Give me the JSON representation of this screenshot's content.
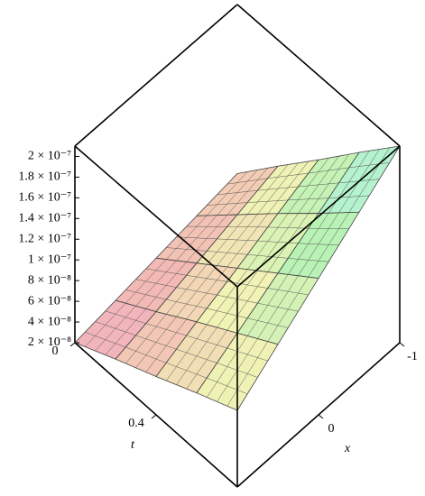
{
  "chart_data": {
    "type": "surface",
    "x_label": "x",
    "t_label": "t",
    "t": [
      0,
      0.2,
      0.4,
      0.6,
      0.8
    ],
    "x": [
      -1,
      -0.5,
      0,
      0.5,
      1
    ],
    "z": [
      [
        4.4e-08,
        3.8e-08,
        3.2e-08,
        2.6e-08,
        2e-08
      ],
      [
        8.6e-08,
        7.4e-08,
        6.2e-08,
        5e-08,
        3.9e-08
      ],
      [
        1.27e-07,
        1.1e-07,
        9.2e-08,
        7.5e-08,
        5.7e-08
      ],
      [
        1.69e-07,
        1.45e-07,
        1.22e-07,
        9.9e-08,
        7.6e-08
      ],
      [
        2.1e-07,
        1.81e-07,
        1.52e-07,
        1.23e-07,
        9.4e-08
      ]
    ],
    "tlim": [
      0,
      0.8
    ],
    "tticks": [
      0,
      0.4
    ],
    "xlim": [
      -1,
      1
    ],
    "xticks": [
      -1,
      0
    ],
    "zlim": [
      2e-08,
      2.1e-07
    ],
    "zticks": [
      {
        "value": 2e-08,
        "label": "2 × 10⁻⁸"
      },
      {
        "value": 4e-08,
        "label": "4 × 10⁻⁸"
      },
      {
        "value": 6e-08,
        "label": "6 × 10⁻⁸"
      },
      {
        "value": 8e-08,
        "label": "8 × 10⁻⁸"
      },
      {
        "value": 1e-07,
        "label": "1 × 10⁻⁷"
      },
      {
        "value": 1.2e-07,
        "label": "1.2 × 10⁻⁷"
      },
      {
        "value": 1.4e-07,
        "label": "1.4 × 10⁻⁷"
      },
      {
        "value": 1.6e-07,
        "label": "1.6 × 10⁻⁷"
      },
      {
        "value": 1.8e-07,
        "label": "1.8 × 10⁻⁷"
      },
      {
        "value": 2e-07,
        "label": "2 × 10⁻⁷"
      }
    ]
  }
}
